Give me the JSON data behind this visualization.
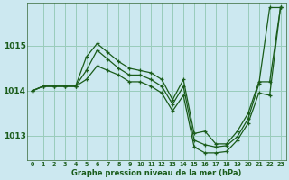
{
  "title": "Graphe pression niveau de la mer (hPa)",
  "bg_color": "#cce8f0",
  "grid_color": "#99ccbb",
  "line_color": "#1a5c1a",
  "xlim": [
    -0.5,
    23.5
  ],
  "ylim": [
    1012.45,
    1015.95
  ],
  "yticks": [
    1013,
    1014,
    1015
  ],
  "xticks": [
    0,
    1,
    2,
    3,
    4,
    5,
    6,
    7,
    8,
    9,
    10,
    11,
    12,
    13,
    14,
    15,
    16,
    17,
    18,
    19,
    20,
    21,
    22,
    23
  ],
  "series": [
    [
      1014.0,
      1014.1,
      1014.1,
      1014.1,
      1014.1,
      1014.75,
      1015.05,
      1014.85,
      1014.65,
      1014.5,
      1014.45,
      1014.4,
      1014.25,
      1013.8,
      1014.25,
      1013.05,
      1013.1,
      1012.82,
      1012.82,
      1013.1,
      1013.5,
      1014.2,
      1014.2,
      1015.85
    ],
    [
      1014.0,
      1014.1,
      1014.1,
      1014.1,
      1014.1,
      1014.45,
      1014.9,
      1014.7,
      1014.5,
      1014.35,
      1014.35,
      1014.25,
      1014.1,
      1013.7,
      1014.1,
      1012.9,
      1012.8,
      1012.75,
      1012.78,
      1012.98,
      1013.38,
      1014.15,
      1015.85,
      1015.85
    ],
    [
      1014.0,
      1014.1,
      1014.1,
      1014.1,
      1014.1,
      1014.25,
      1014.55,
      1014.45,
      1014.35,
      1014.2,
      1014.2,
      1014.1,
      1013.95,
      1013.55,
      1013.9,
      1012.75,
      1012.62,
      1012.62,
      1012.65,
      1012.9,
      1013.28,
      1013.95,
      1013.9,
      1015.85
    ]
  ]
}
